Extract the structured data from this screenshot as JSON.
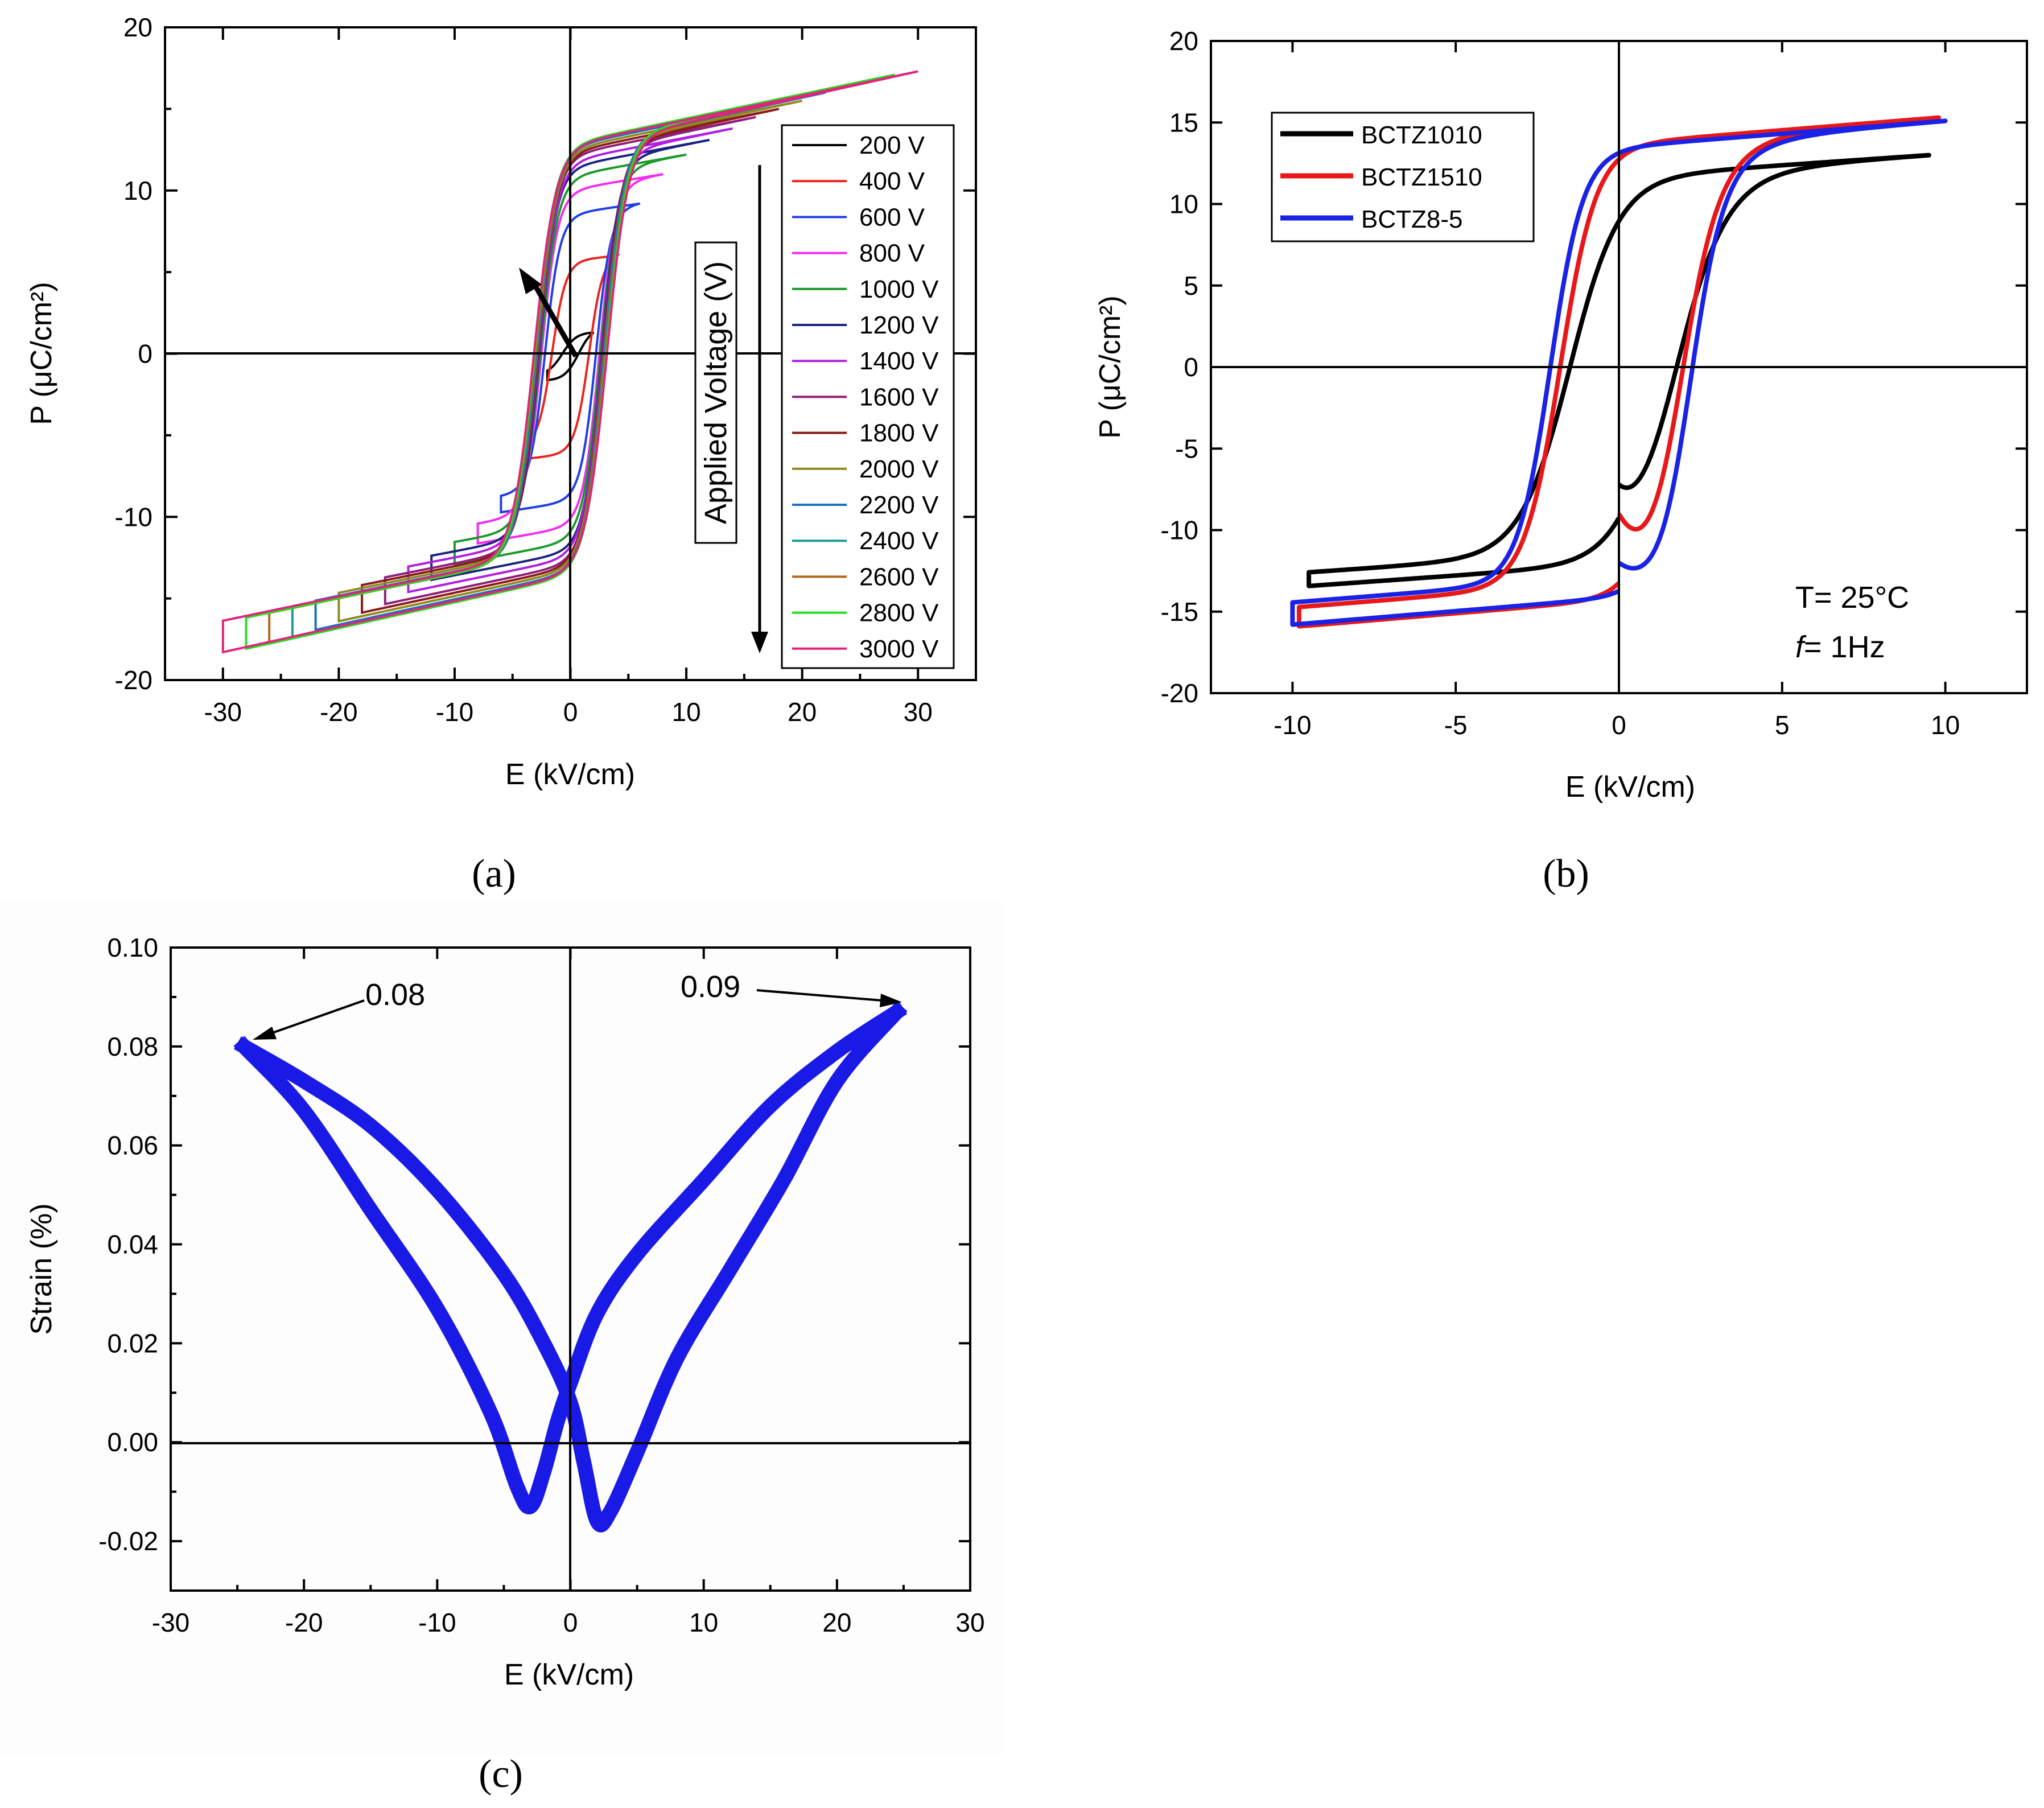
{
  "chart_data": [
    {
      "id": "a",
      "type": "line",
      "panel_label": "(a)",
      "xlabel": "E  (kV/cm)",
      "ylabel": "P (μC/cm²)",
      "xlim": [
        -35,
        35
      ],
      "ylim": [
        -20,
        20
      ],
      "xticks": [
        -30,
        -20,
        -10,
        0,
        10,
        20,
        30
      ],
      "xtick_labels": [
        "-30",
        "-20",
        "-10",
        "0",
        "10",
        "20",
        "30"
      ],
      "yticks": [
        -20,
        -10,
        0,
        10,
        20
      ],
      "ytick_labels": [
        "-20",
        "-10",
        "0",
        "10",
        "20"
      ],
      "legend_position": "right",
      "annotation": "Applied Voltage (V)",
      "series": [
        {
          "name": "200 V",
          "color": "#000000",
          "emax": 2,
          "pmax": 1.3,
          "pr": 0.4,
          "ec": 0.7,
          "k": 1.2
        },
        {
          "name": "400 V",
          "color": "#e8251f",
          "emax": 4,
          "pmax": 6.0,
          "pr": 3.5,
          "ec": 1.6,
          "k": 1.2
        },
        {
          "name": "600 V",
          "color": "#1f3ee6",
          "emax": 6,
          "pmax": 9.2,
          "pr": 6.5,
          "ec": 2.2,
          "k": 1.3
        },
        {
          "name": "800 V",
          "color": "#f22cf2",
          "emax": 8,
          "pmax": 11.0,
          "pr": 8.5,
          "ec": 2.5,
          "k": 1.4
        },
        {
          "name": "1000 V",
          "color": "#1a9a2a",
          "emax": 10,
          "pmax": 12.2,
          "pr": 9.5,
          "ec": 2.6,
          "k": 1.5
        },
        {
          "name": "1200 V",
          "color": "#1a237e",
          "emax": 12,
          "pmax": 13.1,
          "pr": 10.0,
          "ec": 2.7,
          "k": 1.5
        },
        {
          "name": "1400 V",
          "color": "#b11ee0",
          "emax": 14,
          "pmax": 13.8,
          "pr": 10.3,
          "ec": 2.75,
          "k": 1.6
        },
        {
          "name": "1600 V",
          "color": "#8e1e7a",
          "emax": 16,
          "pmax": 14.5,
          "pr": 10.5,
          "ec": 2.8,
          "k": 1.6
        },
        {
          "name": "1800 V",
          "color": "#8b1a1a",
          "emax": 18,
          "pmax": 15.0,
          "pr": 10.7,
          "ec": 2.85,
          "k": 1.65
        },
        {
          "name": "2000 V",
          "color": "#8f8a1e",
          "emax": 20,
          "pmax": 15.5,
          "pr": 10.8,
          "ec": 2.9,
          "k": 1.7
        },
        {
          "name": "2200 V",
          "color": "#1a6fbf",
          "emax": 22,
          "pmax": 16.0,
          "pr": 10.9,
          "ec": 2.95,
          "k": 1.7
        },
        {
          "name": "2400 V",
          "color": "#1a9a9a",
          "emax": 24,
          "pmax": 16.4,
          "pr": 11.0,
          "ec": 3.0,
          "k": 1.75
        },
        {
          "name": "2600 V",
          "color": "#b5651d",
          "emax": 26,
          "pmax": 16.8,
          "pr": 11.1,
          "ec": 3.05,
          "k": 1.8
        },
        {
          "name": "2800 V",
          "color": "#22e022",
          "emax": 28,
          "pmax": 17.1,
          "pr": 11.2,
          "ec": 3.1,
          "k": 1.8
        },
        {
          "name": "3000 V",
          "color": "#e0247a",
          "emax": 30,
          "pmax": 17.3,
          "pr": 11.3,
          "ec": 3.15,
          "k": 1.85
        }
      ]
    },
    {
      "id": "b",
      "type": "line",
      "panel_label": "(b)",
      "xlabel": "E (kV/cm)",
      "ylabel": "P (μC/cm²)",
      "xlim": [
        -12.5,
        12.5
      ],
      "ylim": [
        -20,
        20
      ],
      "xticks": [
        -10,
        -5,
        0,
        5,
        10
      ],
      "xtick_labels": [
        "-10",
        "-5",
        "0",
        "5",
        "10"
      ],
      "yticks": [
        -20,
        -15,
        -10,
        -5,
        0,
        5,
        10,
        15,
        20
      ],
      "ytick_labels": [
        "-20",
        "-15",
        "-10",
        "-5",
        "0",
        "5",
        "10",
        "15",
        "20"
      ],
      "legend_position": "top-left",
      "annotation_lines": [
        "T= 25°C",
        "f",
        "= 1Hz"
      ],
      "series": [
        {
          "name": "BCTZ1010",
          "color": "#000000",
          "emax": 9.5,
          "pmax": 13.0,
          "pr": 7.5,
          "ec": 1.5,
          "k": 1.5,
          "p_init": -7.2
        },
        {
          "name": "BCTZ1510",
          "color": "#e8181a",
          "emax": 9.8,
          "pmax": 15.3,
          "pr": 9.3,
          "ec": 1.8,
          "k": 1.1,
          "p_init": -9.0
        },
        {
          "name": "BCTZ8-5",
          "color": "#1a22e6",
          "emax": 10.0,
          "pmax": 15.1,
          "pr": 11.8,
          "ec": 2.1,
          "k": 1.0,
          "p_init": -12.0
        }
      ]
    },
    {
      "id": "c",
      "type": "line",
      "panel_label": "(c)",
      "xlabel": "E  (kV/cm)",
      "ylabel": "Strain (%)",
      "xlim": [
        -30,
        30
      ],
      "ylim": [
        -0.03,
        0.1
      ],
      "xticks": [
        -30,
        -20,
        -10,
        0,
        10,
        20,
        30
      ],
      "xtick_labels": [
        "-30",
        "-20",
        "-10",
        "0",
        "10",
        "20",
        "30"
      ],
      "yticks": [
        -0.02,
        0.0,
        0.02,
        0.04,
        0.06,
        0.08,
        0.1
      ],
      "ytick_labels": [
        "-0.02",
        "0.00",
        "0.02",
        "0.04",
        "0.06",
        "0.08",
        "0.10"
      ],
      "annotations": [
        "0.08",
        "0.09"
      ],
      "series": [
        {
          "name": "strain",
          "color": "#1a1ae6",
          "emax": 24.5,
          "descending": [
            [
              24.5,
              0.087
            ],
            [
              20,
              0.079
            ],
            [
              15,
              0.068
            ],
            [
              10,
              0.053
            ],
            [
              5,
              0.038
            ],
            [
              2,
              0.026
            ],
            [
              0,
              0.012
            ],
            [
              -1,
              0.004
            ],
            [
              -2,
              -0.006
            ],
            [
              -3,
              -0.013
            ],
            [
              -4,
              -0.009
            ],
            [
              -6,
              0.006
            ],
            [
              -10,
              0.027
            ],
            [
              -15,
              0.047
            ],
            [
              -20,
              0.067
            ],
            [
              -24.5,
              0.08
            ]
          ],
          "ascending": [
            [
              -24.5,
              0.08
            ],
            [
              -20,
              0.073
            ],
            [
              -15,
              0.064
            ],
            [
              -10,
              0.051
            ],
            [
              -5,
              0.034
            ],
            [
              -2,
              0.02
            ],
            [
              0,
              0.008
            ],
            [
              1,
              -0.004
            ],
            [
              2,
              -0.016
            ],
            [
              3,
              -0.014
            ],
            [
              5,
              -0.002
            ],
            [
              8,
              0.017
            ],
            [
              12,
              0.035
            ],
            [
              16,
              0.053
            ],
            [
              20,
              0.073
            ],
            [
              24.5,
              0.087
            ]
          ]
        }
      ]
    }
  ]
}
